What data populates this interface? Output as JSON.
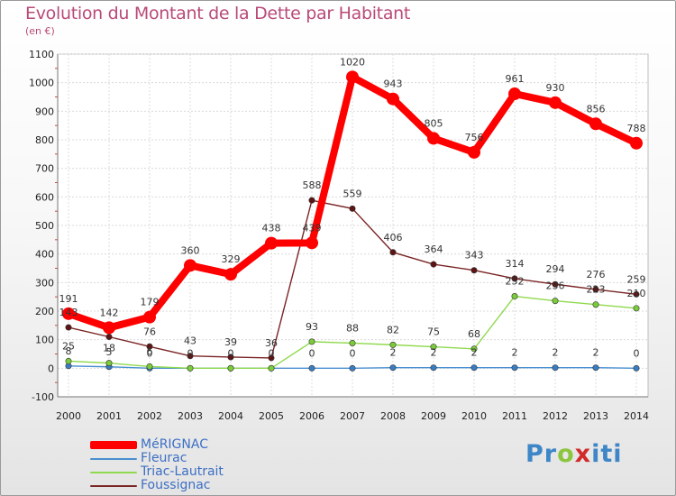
{
  "chart_data": {
    "type": "line",
    "title": "Evolution du Montant de la Dette par Habitant",
    "unit_label": "(en €)",
    "xlabel": "",
    "ylabel": "",
    "ylim": [
      -100,
      1100
    ],
    "yticks": [
      -100,
      0,
      100,
      200,
      300,
      400,
      500,
      600,
      700,
      800,
      900,
      1000,
      1100
    ],
    "grid": true,
    "x": [
      "2000",
      "2001",
      "2002",
      "2003",
      "2004",
      "2005",
      "2006",
      "2007",
      "2008",
      "2009",
      "2010",
      "2011",
      "2012",
      "2013",
      "2014"
    ],
    "series": [
      {
        "name": "MéRIGNAC",
        "color": "#ff0000",
        "marker": "#ff0000",
        "values": [
          191,
          142,
          179,
          360,
          329,
          438,
          439,
          1020,
          943,
          805,
          756,
          961,
          930,
          856,
          788
        ],
        "labels": [
          "191",
          "142",
          "179",
          "360",
          "329",
          "438",
          "439",
          "1020",
          "943",
          "805",
          "756",
          "961",
          "930",
          "856",
          "788"
        ]
      },
      {
        "name": "Fleurac",
        "color": "#4a8fd0",
        "marker": "#3a7cc0",
        "values": [
          8,
          5,
          0,
          0,
          0,
          0,
          0,
          0,
          2,
          2,
          2,
          2,
          2,
          2,
          0
        ],
        "labels": [
          "8",
          "5",
          "0",
          "0",
          "0",
          "0",
          "0",
          "0",
          "2",
          "2",
          "2",
          "2",
          "2",
          "2",
          "0"
        ]
      },
      {
        "name": "Triac-Lautrait",
        "color": "#8fd94e",
        "marker": "#7bcb3a",
        "values": [
          25,
          18,
          6,
          0,
          0,
          0,
          93,
          88,
          82,
          75,
          68,
          252,
          236,
          223,
          210
        ],
        "labels": [
          "25",
          "18",
          "6",
          "",
          "",
          "",
          "93",
          "88",
          "82",
          "75",
          "68",
          "252",
          "236",
          "223",
          "210"
        ]
      },
      {
        "name": "Foussignac",
        "color": "#7a2424",
        "marker": "#5e1414",
        "values": [
          143,
          110,
          76,
          43,
          39,
          36,
          588,
          559,
          406,
          364,
          343,
          314,
          294,
          276,
          259
        ],
        "labels": [
          "143",
          "",
          "76",
          "43",
          "39",
          "36",
          "588",
          "559",
          "406",
          "364",
          "343",
          "314",
          "294",
          "276",
          "259"
        ]
      }
    ]
  },
  "logo": {
    "p": "Pr",
    "o": "o",
    "x": "x",
    "iti": "iti"
  }
}
